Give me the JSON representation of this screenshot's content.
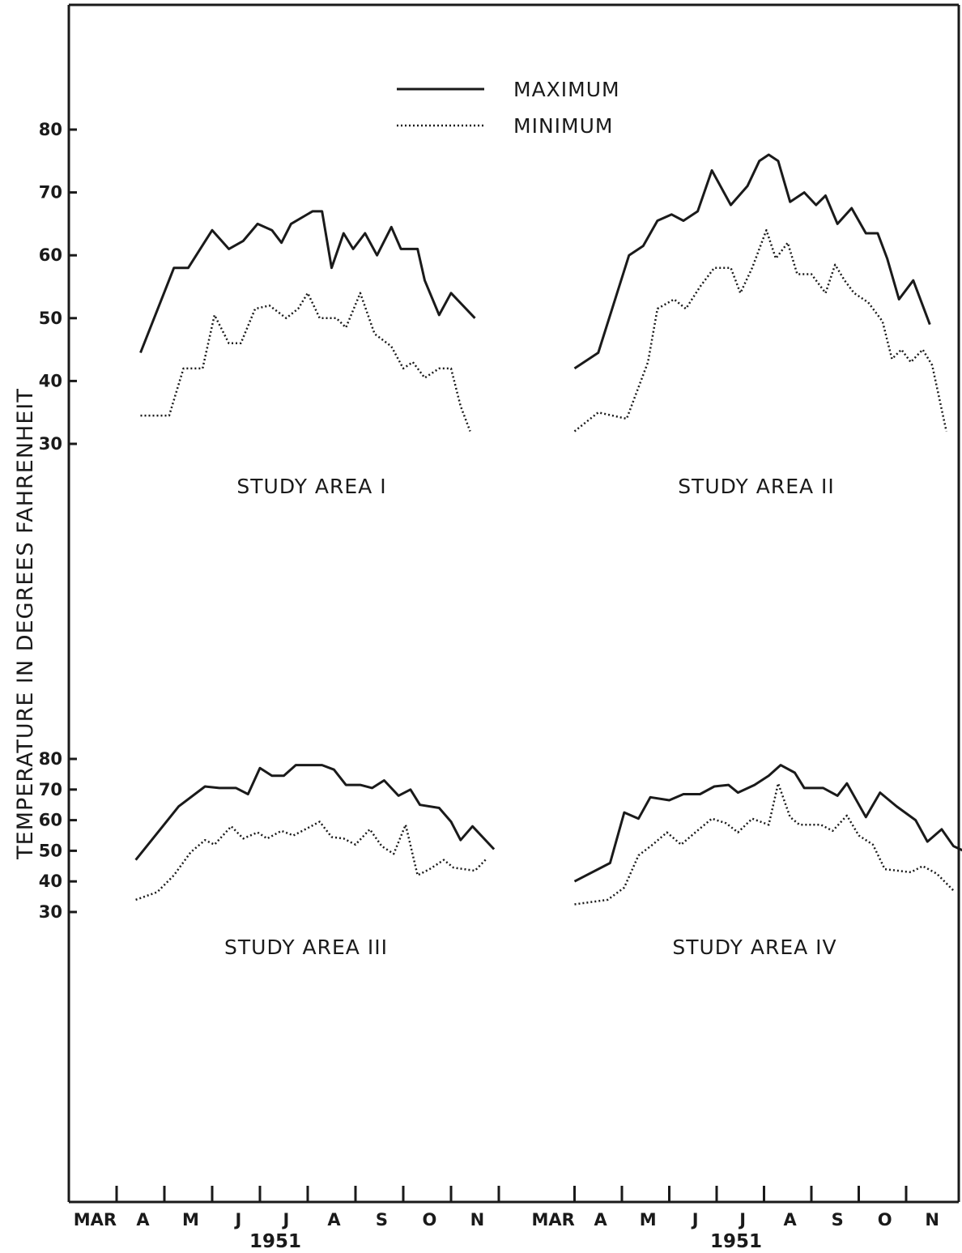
{
  "chart_data": {
    "type": "line",
    "ylabel": "TEMPERATURE IN DEGREES FAHRENHEIT",
    "legend": {
      "position": "top-center",
      "entries": [
        {
          "label": "MAXIMUM",
          "style": "solid"
        },
        {
          "label": "MINIMUM",
          "style": "dotted"
        }
      ]
    },
    "x_month_labels": [
      "MAR",
      "A",
      "M",
      "J",
      "J",
      "A",
      "S",
      "O",
      "N"
    ],
    "x_year_label": "1951",
    "yticks": [
      30,
      40,
      50,
      60,
      70,
      80
    ],
    "ylim": [
      30,
      80
    ],
    "grid": false,
    "colors": {
      "line": "#1a1a1a",
      "background": "#ffffff"
    },
    "panels": [
      {
        "title": "STUDY AREA I",
        "series": [
          {
            "name": "MAXIMUM",
            "points": [
              [
                1.5,
                44.5
              ],
              [
                2.2,
                58
              ],
              [
                2.5,
                58
              ],
              [
                3.0,
                64
              ],
              [
                3.35,
                61
              ],
              [
                3.65,
                62.3
              ],
              [
                3.95,
                65
              ],
              [
                4.25,
                64
              ],
              [
                4.45,
                62
              ],
              [
                4.65,
                65
              ],
              [
                5.1,
                67
              ],
              [
                5.3,
                67
              ],
              [
                5.5,
                58
              ],
              [
                5.75,
                63.5
              ],
              [
                5.95,
                61
              ],
              [
                6.2,
                63.5
              ],
              [
                6.45,
                60
              ],
              [
                6.75,
                64.5
              ],
              [
                6.95,
                61
              ],
              [
                7.3,
                61
              ],
              [
                7.45,
                56
              ],
              [
                7.75,
                50.5
              ],
              [
                8.0,
                54
              ],
              [
                8.5,
                50
              ]
            ]
          },
          {
            "name": "MINIMUM",
            "points": [
              [
                1.5,
                34.5
              ],
              [
                2.1,
                34.5
              ],
              [
                2.4,
                42
              ],
              [
                2.8,
                42
              ],
              [
                3.05,
                50.5
              ],
              [
                3.35,
                46
              ],
              [
                3.6,
                46
              ],
              [
                3.9,
                51.5
              ],
              [
                4.2,
                52
              ],
              [
                4.55,
                50
              ],
              [
                4.8,
                51.5
              ],
              [
                5.0,
                54
              ],
              [
                5.25,
                50
              ],
              [
                5.6,
                50
              ],
              [
                5.8,
                48.5
              ],
              [
                6.1,
                54
              ],
              [
                6.4,
                47.5
              ],
              [
                6.75,
                45.5
              ],
              [
                7.0,
                42
              ],
              [
                7.2,
                43
              ],
              [
                7.45,
                40.5
              ],
              [
                7.75,
                42
              ],
              [
                8.0,
                42
              ],
              [
                8.2,
                36
              ],
              [
                8.4,
                32
              ]
            ]
          }
        ]
      },
      {
        "title": "STUDY AREA II",
        "series": [
          {
            "name": "MAXIMUM",
            "points": [
              [
                1.0,
                42
              ],
              [
                1.5,
                44.5
              ],
              [
                2.15,
                60
              ],
              [
                2.45,
                61.5
              ],
              [
                2.75,
                65.5
              ],
              [
                3.05,
                66.5
              ],
              [
                3.3,
                65.5
              ],
              [
                3.6,
                67
              ],
              [
                3.9,
                73.5
              ],
              [
                4.3,
                68
              ],
              [
                4.65,
                71
              ],
              [
                4.9,
                75
              ],
              [
                5.1,
                76
              ],
              [
                5.3,
                75
              ],
              [
                5.55,
                68.5
              ],
              [
                5.85,
                70
              ],
              [
                6.1,
                68
              ],
              [
                6.3,
                69.5
              ],
              [
                6.55,
                65
              ],
              [
                6.85,
                67.5
              ],
              [
                7.15,
                63.5
              ],
              [
                7.4,
                63.5
              ],
              [
                7.6,
                59.5
              ],
              [
                7.85,
                53
              ],
              [
                8.15,
                56
              ],
              [
                8.5,
                49
              ]
            ]
          },
          {
            "name": "MINIMUM",
            "points": [
              [
                1.0,
                32
              ],
              [
                1.5,
                35
              ],
              [
                2.1,
                34
              ],
              [
                2.55,
                43
              ],
              [
                2.75,
                51.5
              ],
              [
                3.1,
                53
              ],
              [
                3.35,
                51.5
              ],
              [
                3.65,
                55
              ],
              [
                3.95,
                58
              ],
              [
                4.3,
                58
              ],
              [
                4.5,
                54
              ],
              [
                4.75,
                58
              ],
              [
                5.05,
                64
              ],
              [
                5.25,
                59.5
              ],
              [
                5.5,
                62
              ],
              [
                5.7,
                57
              ],
              [
                6.0,
                57
              ],
              [
                6.3,
                54
              ],
              [
                6.5,
                58.5
              ],
              [
                6.7,
                56
              ],
              [
                6.9,
                54
              ],
              [
                7.2,
                52.5
              ],
              [
                7.5,
                49.5
              ],
              [
                7.7,
                43.5
              ],
              [
                7.9,
                45
              ],
              [
                8.1,
                43
              ],
              [
                8.35,
                45
              ],
              [
                8.55,
                42.5
              ],
              [
                8.85,
                32
              ]
            ]
          }
        ]
      },
      {
        "title": "STUDY AREA III",
        "series": [
          {
            "name": "MAXIMUM",
            "points": [
              [
                1.4,
                47
              ],
              [
                2.3,
                64.5
              ],
              [
                2.85,
                71
              ],
              [
                3.15,
                70.5
              ],
              [
                3.5,
                70.5
              ],
              [
                3.75,
                68.5
              ],
              [
                4.0,
                77
              ],
              [
                4.25,
                74.5
              ],
              [
                4.5,
                74.5
              ],
              [
                4.75,
                78
              ],
              [
                5.3,
                78
              ],
              [
                5.55,
                76.5
              ],
              [
                5.8,
                71.5
              ],
              [
                6.1,
                71.5
              ],
              [
                6.35,
                70.5
              ],
              [
                6.6,
                73
              ],
              [
                6.9,
                68
              ],
              [
                7.15,
                70
              ],
              [
                7.35,
                65
              ],
              [
                7.75,
                64
              ],
              [
                8.0,
                59.5
              ],
              [
                8.2,
                53.5
              ],
              [
                8.45,
                58
              ],
              [
                8.9,
                50.5
              ]
            ]
          },
          {
            "name": "MINIMUM",
            "points": [
              [
                1.4,
                34
              ],
              [
                1.85,
                36.5
              ],
              [
                2.2,
                42
              ],
              [
                2.55,
                49.5
              ],
              [
                2.85,
                53.5
              ],
              [
                3.05,
                52
              ],
              [
                3.4,
                58
              ],
              [
                3.65,
                54
              ],
              [
                3.95,
                56
              ],
              [
                4.15,
                54
              ],
              [
                4.45,
                56.5
              ],
              [
                4.7,
                55
              ],
              [
                4.95,
                57
              ],
              [
                5.25,
                59.5
              ],
              [
                5.5,
                54.5
              ],
              [
                5.75,
                54
              ],
              [
                6.0,
                52
              ],
              [
                6.3,
                57
              ],
              [
                6.55,
                51.5
              ],
              [
                6.8,
                49
              ],
              [
                7.05,
                58.5
              ],
              [
                7.3,
                42
              ],
              [
                7.55,
                44
              ],
              [
                7.85,
                47
              ],
              [
                8.05,
                44.5
              ],
              [
                8.5,
                43.5
              ],
              [
                8.75,
                47.5
              ]
            ]
          }
        ]
      },
      {
        "title": "STUDY AREA IV",
        "series": [
          {
            "name": "MAXIMUM",
            "points": [
              [
                1.0,
                40
              ],
              [
                1.75,
                46
              ],
              [
                2.05,
                62.5
              ],
              [
                2.35,
                60.5
              ],
              [
                2.6,
                67.5
              ],
              [
                3.0,
                66.5
              ],
              [
                3.3,
                68.5
              ],
              [
                3.65,
                68.5
              ],
              [
                3.95,
                71
              ],
              [
                4.25,
                71.5
              ],
              [
                4.45,
                69
              ],
              [
                4.8,
                71.5
              ],
              [
                5.1,
                74.5
              ],
              [
                5.35,
                78
              ],
              [
                5.65,
                75.5
              ],
              [
                5.85,
                70.5
              ],
              [
                6.25,
                70.5
              ],
              [
                6.55,
                68
              ],
              [
                6.75,
                72
              ],
              [
                7.15,
                61
              ],
              [
                7.45,
                69
              ],
              [
                7.8,
                64.5
              ],
              [
                8.2,
                60
              ],
              [
                8.45,
                53
              ],
              [
                8.75,
                57
              ],
              [
                9.0,
                51.5
              ],
              [
                9.35,
                49
              ]
            ]
          },
          {
            "name": "MINIMUM",
            "points": [
              [
                1.0,
                32.5
              ],
              [
                1.7,
                34
              ],
              [
                2.05,
                38
              ],
              [
                2.35,
                48.5
              ],
              [
                2.65,
                52
              ],
              [
                2.95,
                56
              ],
              [
                3.25,
                52
              ],
              [
                3.55,
                56
              ],
              [
                3.9,
                60.5
              ],
              [
                4.2,
                59
              ],
              [
                4.45,
                56
              ],
              [
                4.75,
                60.5
              ],
              [
                5.1,
                58.5
              ],
              [
                5.3,
                72
              ],
              [
                5.55,
                61
              ],
              [
                5.75,
                58.5
              ],
              [
                6.0,
                58.5
              ],
              [
                6.2,
                58.5
              ],
              [
                6.45,
                56.5
              ],
              [
                6.75,
                61.5
              ],
              [
                7.0,
                55
              ],
              [
                7.3,
                52
              ],
              [
                7.55,
                44
              ],
              [
                8.1,
                43
              ],
              [
                8.35,
                45
              ],
              [
                8.65,
                42.5
              ],
              [
                9.0,
                37
              ]
            ]
          }
        ]
      }
    ]
  }
}
